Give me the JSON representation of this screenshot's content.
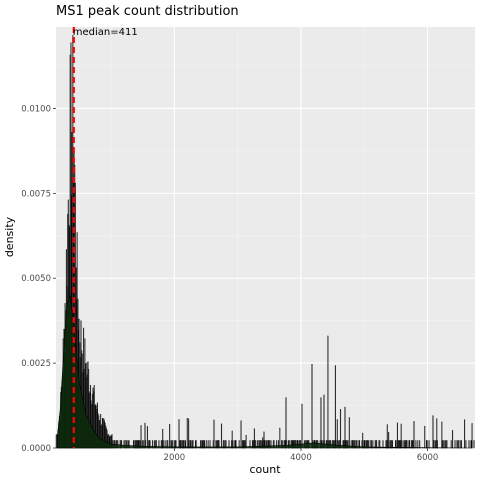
{
  "title": "MS1 peak count distribution",
  "xlabel": "count",
  "ylabel": "density",
  "annotation": "median=411",
  "colors": {
    "panel": "#ebebeb",
    "grid_major": "#ffffff",
    "grid_minor": "#f4f4f4",
    "hist_outline": "#000000",
    "density_fill": "#0b2a0b",
    "median_line": "#ff0000"
  },
  "chart_data": {
    "type": "area",
    "title": "MS1 peak count distribution",
    "xlabel": "count",
    "ylabel": "density",
    "xlim": [
      130,
      6750
    ],
    "ylim": [
      0,
      0.0124
    ],
    "x_ticks": [
      2000,
      4000,
      6000
    ],
    "x_tick_labels": [
      "2000",
      "4000",
      "6000"
    ],
    "y_ticks": [
      0,
      0.0025,
      0.005,
      0.0075,
      0.01
    ],
    "y_tick_labels": [
      "0.0000",
      "0.0025",
      "0.0050",
      "0.0075",
      "0.0100"
    ],
    "grid": true,
    "median": 411,
    "annotation": "median=411",
    "histogram_envelope": {
      "x": [
        150,
        200,
        250,
        300,
        350,
        380,
        410,
        450,
        500,
        600,
        700,
        800,
        900,
        1000,
        1200,
        1500,
        2000,
        2500,
        3000,
        3500,
        4000,
        4300,
        4500,
        5000,
        6000,
        6700
      ],
      "y": [
        0.0005,
        0.0015,
        0.0038,
        0.0072,
        0.0118,
        0.0124,
        0.0124,
        0.0072,
        0.0045,
        0.0032,
        0.0022,
        0.0013,
        0.0008,
        0.0004,
        0.0003,
        0.0003,
        0.0003,
        0.0003,
        0.0003,
        0.0003,
        0.0009,
        0.0015,
        0.0009,
        0.0003,
        0.0003,
        0.0003
      ]
    },
    "density_curve": {
      "x": [
        150,
        200,
        250,
        300,
        350,
        400,
        450,
        500,
        600,
        700,
        800,
        900,
        1000,
        1200,
        1500,
        2000,
        3000,
        3800,
        4200,
        4600,
        5000,
        6000,
        6700
      ],
      "y": [
        0.0003,
        0.0012,
        0.0028,
        0.0042,
        0.0045,
        0.0038,
        0.0028,
        0.0019,
        0.001,
        0.0006,
        0.0003,
        0.0002,
        0.00012,
        8e-05,
        5e-05,
        3e-05,
        3e-05,
        8e-05,
        0.00015,
        8e-05,
        3e-05,
        1e-05,
        0.0
      ]
    }
  }
}
